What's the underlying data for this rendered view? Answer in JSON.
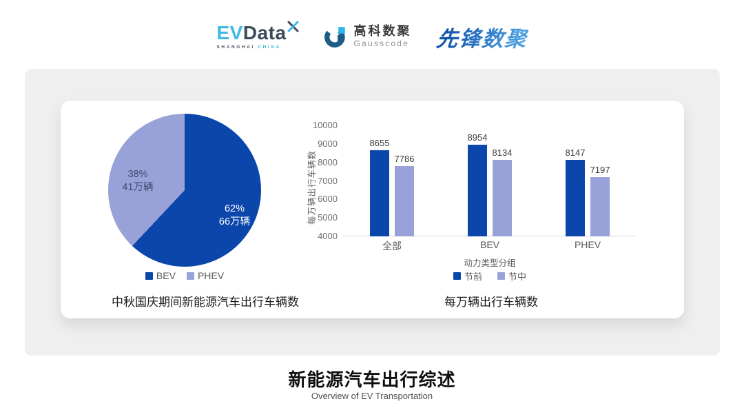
{
  "header": {
    "evdata": {
      "ev": "EV",
      "data": "Data",
      "sub_location": "SHANGHAI",
      "sub_country": "CHINA"
    },
    "gausscode": {
      "cn": "高科数聚",
      "en": "Gausscode"
    },
    "pioneer": {
      "text": "先锋数聚"
    }
  },
  "colors": {
    "series_dark": "#0b46ab",
    "series_light": "#98a2d8",
    "panel_gray": "#efeff0",
    "axis_text": "#6f6f6f"
  },
  "chart_data": [
    {
      "type": "pie",
      "title": "中秋国庆期间新能源汽车出行车辆数",
      "slices": [
        {
          "label": "BEV",
          "percent": 62,
          "percent_label": "62%",
          "value_label": "66万辆",
          "color": "#0b46ab"
        },
        {
          "label": "PHEV",
          "percent": 38,
          "percent_label": "38%",
          "value_label": "41万辆",
          "color": "#98a2d8"
        }
      ],
      "legend_position": "bottom",
      "start_angle_deg": 0
    },
    {
      "type": "bar",
      "title": "每万辆出行车辆数",
      "categories": [
        "全部",
        "BEV",
        "PHEV"
      ],
      "series": [
        {
          "name": "节前",
          "color": "#0b46ab",
          "values": [
            8655,
            8954,
            8147
          ]
        },
        {
          "name": "节中",
          "color": "#98a2d8",
          "values": [
            7786,
            8134,
            7197
          ]
        }
      ],
      "xlabel": "动力类型分组",
      "ylabel": "每万辆出行车辆数",
      "ylim": [
        4000,
        10000
      ],
      "yticks": [
        4000,
        5000,
        6000,
        7000,
        8000,
        9000,
        10000
      ],
      "grid": false,
      "legend_position": "bottom"
    }
  ],
  "footer": {
    "title": "新能源汽车出行综述",
    "subtitle": "Overview of EV Transportation"
  }
}
